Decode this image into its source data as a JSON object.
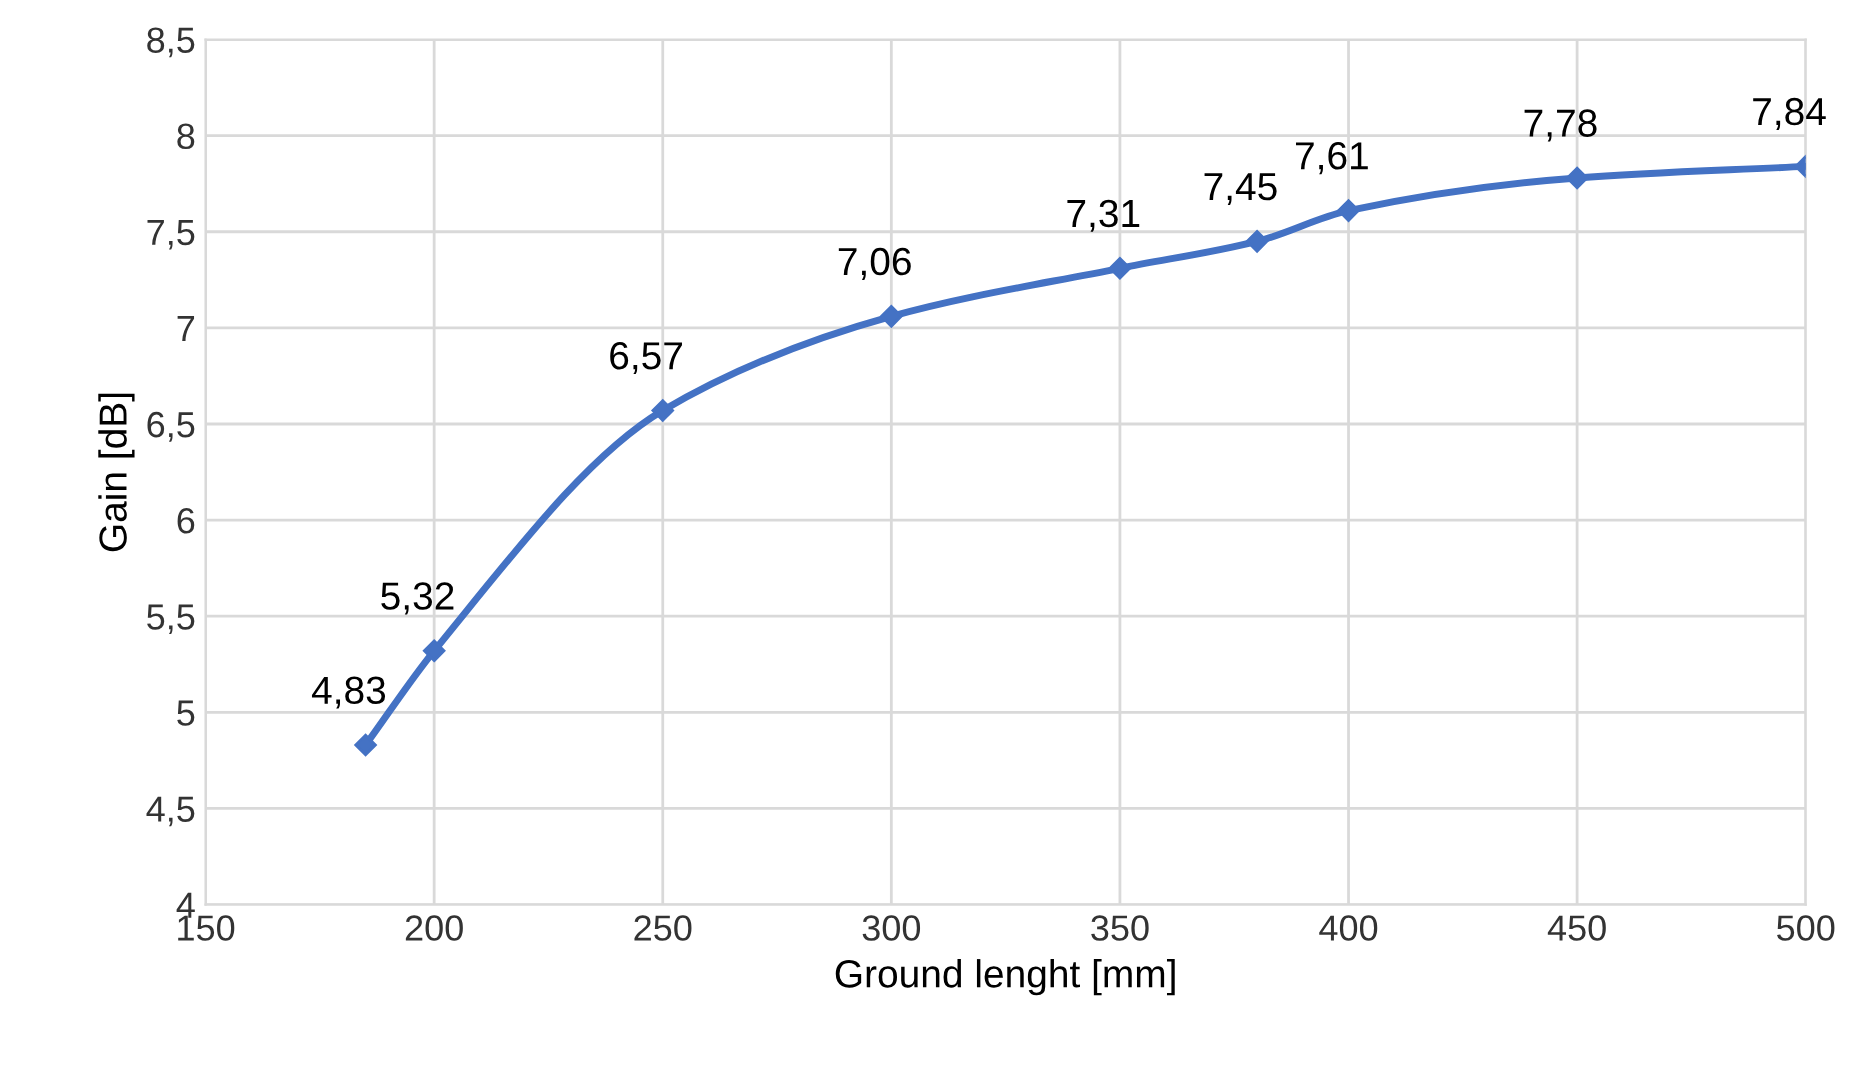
{
  "chart_data": {
    "type": "line",
    "xlabel": "Ground lenght [mm]",
    "ylabel": "Gain [dB]",
    "x": [
      185,
      200,
      250,
      300,
      350,
      380,
      400,
      450,
      500
    ],
    "series": [
      {
        "color": "#4472c4",
        "values": [
          4.83,
          5.32,
          6.57,
          7.06,
          7.31,
          7.45,
          7.61,
          7.78,
          7.84
        ],
        "value_labels": [
          "4,83",
          "5,32",
          "6,57",
          "7,06",
          "7,31",
          "7,45",
          "7,61",
          "7,78",
          "7,84"
        ]
      }
    ],
    "xlim": [
      150,
      500
    ],
    "xticks": [
      150,
      200,
      250,
      300,
      350,
      400,
      450,
      500
    ],
    "ylim": [
      4,
      8.5
    ],
    "yticks": [
      4,
      {
        "value": 4.5,
        "label": "4,5"
      },
      5,
      {
        "value": 5.5,
        "label": "5,5"
      },
      6,
      {
        "value": 6.5,
        "label": "6,5"
      },
      7,
      {
        "value": 7.5,
        "label": "7,5"
      },
      8,
      {
        "value": 8.5,
        "label": "8,5"
      }
    ],
    "grid": true,
    "marker": "diamond",
    "line_style": "solid"
  }
}
